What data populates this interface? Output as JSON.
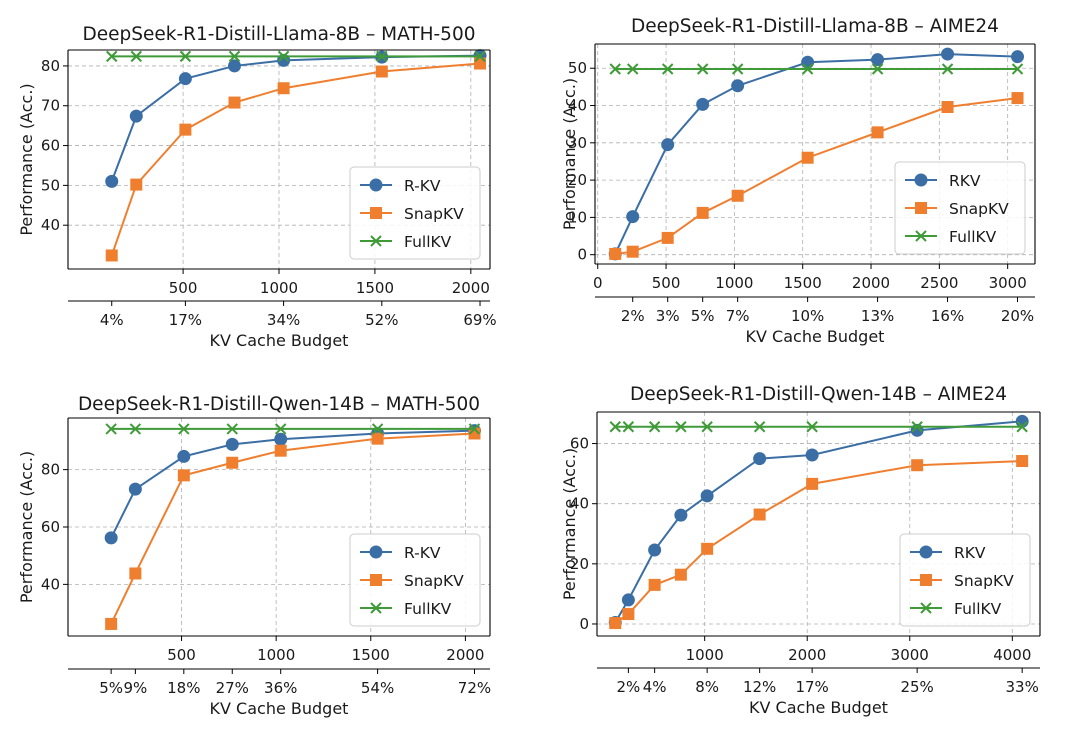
{
  "colors": {
    "rkv": "#3b6ea5",
    "snapkv": "#ef7f2f",
    "fullkv": "#3f9a38"
  },
  "chart_data": [
    {
      "type": "line",
      "title": "DeepSeek-R1-Distill-Llama-8B – MATH-500",
      "xlabel": "KV Cache Budget",
      "ylabel": "Performance (Acc.)",
      "xlim": [
        -100,
        2100
      ],
      "ylim": [
        29,
        84
      ],
      "xticks": [
        500,
        1000,
        1500,
        2000
      ],
      "xtick_labels": [
        "500",
        "1000",
        "1500",
        "2000"
      ],
      "yticks": [
        40,
        50,
        60,
        70,
        80
      ],
      "ytick_labels": [
        "40",
        "50",
        "60",
        "70",
        "80"
      ],
      "pct_ticks": [
        {
          "x": 128,
          "label": "4%"
        },
        {
          "x": 512,
          "label": "17%"
        },
        {
          "x": 1024,
          "label": "34%"
        },
        {
          "x": 1536,
          "label": "52%"
        },
        {
          "x": 2048,
          "label": "69%"
        }
      ],
      "grid": true,
      "legend_position": "lower-right",
      "series": [
        {
          "name": "R-KV",
          "key": "rkv",
          "marker": "circle",
          "x": [
            128,
            256,
            512,
            768,
            1024,
            1536,
            2048
          ],
          "y": [
            51.0,
            67.4,
            76.8,
            80.0,
            81.4,
            82.2,
            82.6
          ]
        },
        {
          "name": "SnapKV",
          "key": "snapkv",
          "marker": "square",
          "x": [
            128,
            256,
            512,
            768,
            1024,
            1536,
            2048
          ],
          "y": [
            32.4,
            50.2,
            64.0,
            70.8,
            74.4,
            78.6,
            80.6
          ]
        },
        {
          "name": "FullKV",
          "key": "fullkv",
          "marker": "x",
          "x": [
            128,
            256,
            512,
            768,
            1024,
            1536,
            2048
          ],
          "y": [
            82.4,
            82.4,
            82.4,
            82.4,
            82.4,
            82.4,
            82.4
          ]
        }
      ]
    },
    {
      "type": "line",
      "title": "DeepSeek-R1-Distill-Llama-8B – AIME24",
      "xlabel": "KV Cache Budget",
      "ylabel": "Performance (Acc.)",
      "xlim": [
        -20,
        3200
      ],
      "ylim": [
        -2.5,
        56.5
      ],
      "xticks": [
        0,
        500,
        1000,
        1500,
        2000,
        2500,
        3000
      ],
      "xtick_labels": [
        "0",
        "500",
        "1000",
        "1500",
        "2000",
        "2500",
        "3000"
      ],
      "yticks": [
        0,
        10,
        20,
        30,
        40,
        50
      ],
      "ytick_labels": [
        "0",
        "10",
        "20",
        "30",
        "40",
        "50"
      ],
      "pct_ticks": [
        {
          "x": 256,
          "label": "2%"
        },
        {
          "x": 512,
          "label": "3%"
        },
        {
          "x": 768,
          "label": "5%"
        },
        {
          "x": 1024,
          "label": "7%"
        },
        {
          "x": 1536,
          "label": "10%"
        },
        {
          "x": 2048,
          "label": "13%"
        },
        {
          "x": 2560,
          "label": "16%"
        },
        {
          "x": 3072,
          "label": "20%"
        }
      ],
      "grid": true,
      "legend_position": "lower-right",
      "series": [
        {
          "name": "RKV",
          "key": "rkv",
          "marker": "circle",
          "x": [
            128,
            256,
            512,
            768,
            1024,
            1536,
            2048,
            2560,
            3072
          ],
          "y": [
            0.2,
            10.2,
            29.5,
            40.3,
            45.3,
            51.6,
            52.3,
            53.8,
            53.1
          ]
        },
        {
          "name": "SnapKV",
          "key": "snapkv",
          "marker": "square",
          "x": [
            128,
            256,
            512,
            768,
            1024,
            1536,
            2048,
            2560,
            3072
          ],
          "y": [
            0.2,
            0.8,
            4.5,
            11.2,
            15.8,
            26.0,
            32.8,
            39.6,
            42.0
          ]
        },
        {
          "name": "FullKV",
          "key": "fullkv",
          "marker": "x",
          "x": [
            128,
            256,
            512,
            768,
            1024,
            1536,
            2048,
            2560,
            3072
          ],
          "y": [
            49.8,
            49.8,
            49.8,
            49.8,
            49.8,
            49.8,
            49.8,
            49.8,
            49.8
          ]
        }
      ]
    },
    {
      "type": "line",
      "title": "DeepSeek-R1-Distill-Qwen-14B – MATH-500",
      "xlabel": "KV Cache Budget",
      "ylabel": "Performance (Acc.)",
      "xlim": [
        -100,
        2130
      ],
      "ylim": [
        22,
        98
      ],
      "xticks": [
        500,
        1000,
        1500,
        2000
      ],
      "xtick_labels": [
        "500",
        "1000",
        "1500",
        "2000"
      ],
      "yticks": [
        40,
        60,
        80
      ],
      "ytick_labels": [
        "40",
        "60",
        "80"
      ],
      "pct_ticks": [
        {
          "x": 128,
          "label": "5%"
        },
        {
          "x": 256,
          "label": "9%"
        },
        {
          "x": 512,
          "label": "18%"
        },
        {
          "x": 768,
          "label": "27%"
        },
        {
          "x": 1024,
          "label": "36%"
        },
        {
          "x": 1536,
          "label": "54%"
        },
        {
          "x": 2048,
          "label": "72%"
        }
      ],
      "grid": true,
      "legend_position": "lower-right",
      "series": [
        {
          "name": "R-KV",
          "key": "rkv",
          "marker": "circle",
          "x": [
            128,
            256,
            512,
            768,
            1024,
            1536,
            2048
          ],
          "y": [
            56.2,
            73.2,
            84.6,
            88.8,
            90.6,
            92.6,
            93.6
          ]
        },
        {
          "name": "SnapKV",
          "key": "snapkv",
          "marker": "square",
          "x": [
            128,
            256,
            512,
            768,
            1024,
            1536,
            2048
          ],
          "y": [
            26.2,
            43.8,
            78.0,
            82.4,
            86.6,
            90.8,
            92.6
          ]
        },
        {
          "name": "FullKV",
          "key": "fullkv",
          "marker": "x",
          "x": [
            128,
            256,
            512,
            768,
            1024,
            1536,
            2048
          ],
          "y": [
            94.2,
            94.2,
            94.2,
            94.2,
            94.2,
            94.2,
            94.2
          ]
        }
      ]
    },
    {
      "type": "line",
      "title": "DeepSeek-R1-Distill-Qwen-14B – AIME24",
      "xlabel": "KV Cache Budget",
      "ylabel": "Performance (Acc.)",
      "xlim": [
        -50,
        4270
      ],
      "ylim": [
        -4,
        70.5
      ],
      "xticks": [
        1000,
        2000,
        3000,
        4000
      ],
      "xtick_labels": [
        "1000",
        "2000",
        "3000",
        "4000"
      ],
      "yticks": [
        0,
        20,
        40,
        60
      ],
      "ytick_labels": [
        "0",
        "20",
        "40",
        "60"
      ],
      "pct_ticks": [
        {
          "x": 256,
          "label": "2%"
        },
        {
          "x": 512,
          "label": "4%"
        },
        {
          "x": 1024,
          "label": "8%"
        },
        {
          "x": 1536,
          "label": "12%"
        },
        {
          "x": 2048,
          "label": "17%"
        },
        {
          "x": 3072,
          "label": "25%"
        },
        {
          "x": 4096,
          "label": "33%"
        }
      ],
      "grid": true,
      "legend_position": "lower-right",
      "series": [
        {
          "name": "RKV",
          "key": "rkv",
          "marker": "circle",
          "x": [
            128,
            256,
            512,
            768,
            1024,
            1536,
            2048,
            3072,
            4096
          ],
          "y": [
            0.5,
            8.0,
            24.6,
            36.2,
            42.6,
            55.0,
            56.2,
            64.4,
            67.4
          ]
        },
        {
          "name": "SnapKV",
          "key": "snapkv",
          "marker": "square",
          "x": [
            128,
            256,
            512,
            768,
            1024,
            1536,
            2048,
            3072,
            4096
          ],
          "y": [
            0.3,
            3.3,
            13.0,
            16.4,
            25.0,
            36.4,
            46.6,
            52.8,
            54.2
          ]
        },
        {
          "name": "FullKV",
          "key": "fullkv",
          "marker": "x",
          "x": [
            128,
            256,
            512,
            768,
            1024,
            1536,
            2048,
            3072,
            4096
          ],
          "y": [
            65.6,
            65.6,
            65.6,
            65.6,
            65.6,
            65.6,
            65.6,
            65.6,
            65.6
          ]
        }
      ]
    }
  ]
}
